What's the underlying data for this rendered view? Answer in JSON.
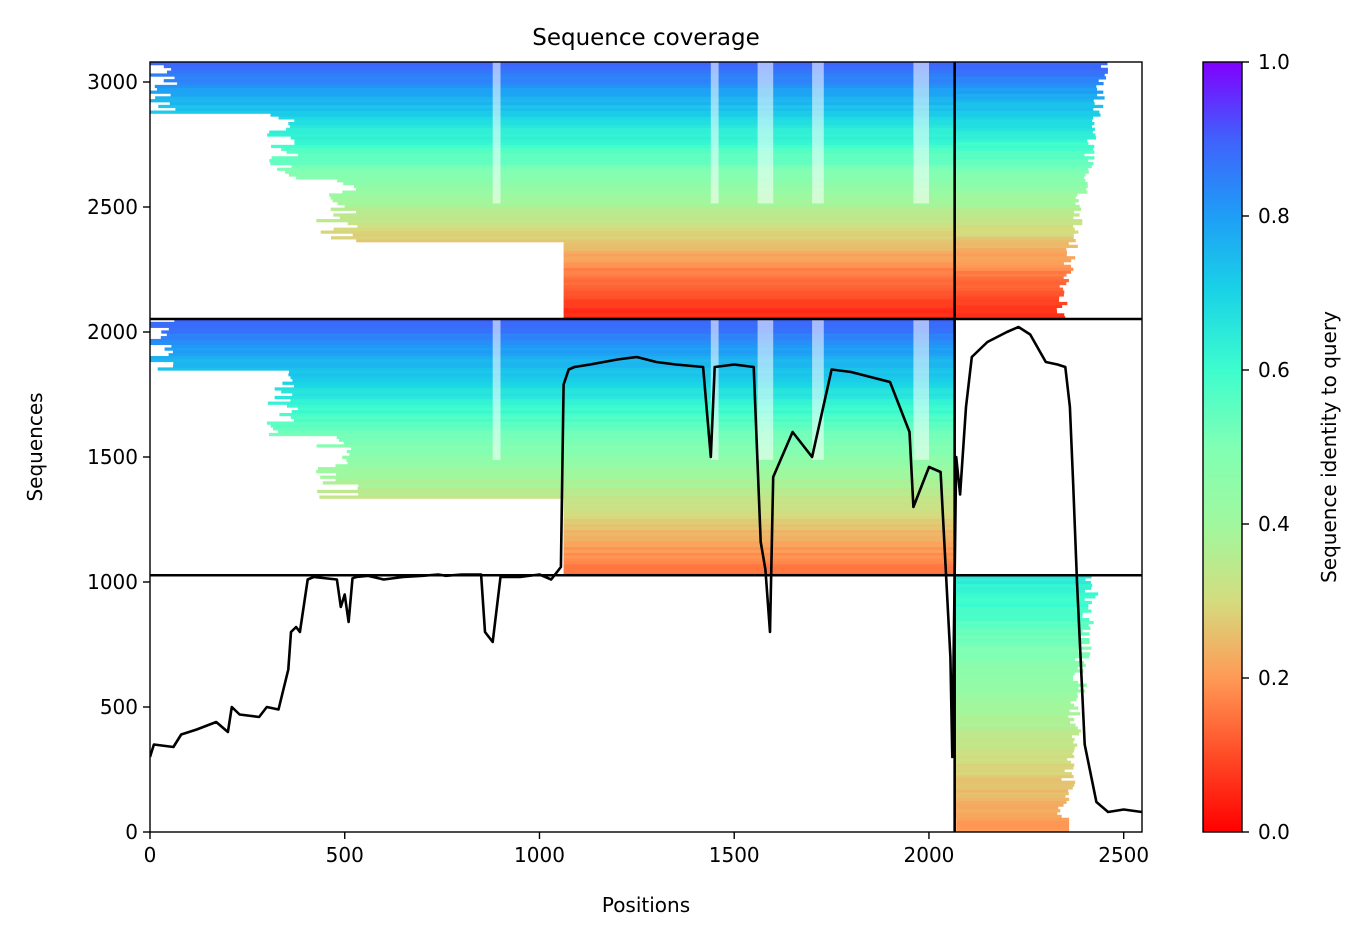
{
  "chart_data": {
    "type": "heatmap",
    "title": "Sequence coverage",
    "xlabel": "Positions",
    "ylabel": "Sequences",
    "xlim": [
      0,
      2547
    ],
    "ylim": [
      0,
      3080
    ],
    "x_ticks": [
      0,
      500,
      1000,
      1500,
      2000,
      2500
    ],
    "y_ticks": [
      0,
      500,
      1000,
      1500,
      2000,
      2500,
      3000
    ],
    "colormap": "rainbow_r",
    "colorbar": {
      "label": "Sequence identity to query",
      "range": [
        0,
        1
      ],
      "ticks": [
        "0.0",
        "0.2",
        "0.4",
        "0.6",
        "0.8",
        "1.0"
      ]
    },
    "chain_boundaries": {
      "vertical_x": [
        2066
      ],
      "horizontal_y": [
        1027,
        2052
      ]
    },
    "msa_blocks": [
      {
        "name": "block-top",
        "x": [
          0,
          2066
        ],
        "y": [
          2052,
          3080
        ],
        "identity_top": 0.9,
        "identity_bottom": 0.05,
        "profile": [
          [
            0,
            0.1
          ],
          [
            0.18,
            0.15
          ],
          [
            0.39,
            0.45
          ],
          [
            0.5,
            0.55
          ],
          [
            1,
            0.88
          ]
        ]
      },
      {
        "name": "block-top-right",
        "x": [
          2066,
          2547
        ],
        "y": [
          2052,
          3080
        ],
        "identity_top": 0.9,
        "identity_bottom": 0.05
      },
      {
        "name": "block-middle",
        "x": [
          0,
          2066
        ],
        "y": [
          1027,
          2052
        ],
        "identity_top": 0.9,
        "identity_bottom": 0.15
      },
      {
        "name": "block-bottom-right",
        "x": [
          2066,
          2547
        ],
        "y": [
          0,
          1027
        ],
        "identity_top": 0.65,
        "identity_bottom": 0.2
      }
    ],
    "series": [
      {
        "color": "#000000",
        "x": [
          0,
          10,
          60,
          80,
          120,
          170,
          200,
          210,
          230,
          280,
          300,
          330,
          355,
          362,
          375,
          385,
          405,
          420,
          480,
          490,
          500,
          510,
          520,
          530,
          560,
          600,
          650,
          700,
          740,
          760,
          800,
          850,
          860,
          880,
          900,
          950,
          1000,
          1030,
          1055,
          1062,
          1075,
          1090,
          1130,
          1200,
          1250,
          1300,
          1350,
          1420,
          1440,
          1450,
          1500,
          1550,
          1568,
          1580,
          1592,
          1600,
          1650,
          1700,
          1750,
          1800,
          1850,
          1900,
          1950,
          1960,
          1980,
          2000,
          2030,
          2055,
          2060,
          2070,
          2080,
          2095,
          2110,
          2150,
          2200,
          2230,
          2260,
          2300,
          2330,
          2350,
          2362,
          2370,
          2380,
          2400,
          2430,
          2460,
          2500,
          2547
        ],
        "values": [
          300,
          350,
          340,
          390,
          410,
          440,
          400,
          500,
          470,
          460,
          500,
          490,
          650,
          800,
          820,
          800,
          1010,
          1020,
          1010,
          900,
          950,
          840,
          1015,
          1020,
          1025,
          1010,
          1020,
          1025,
          1030,
          1025,
          1030,
          1030,
          800,
          760,
          1020,
          1020,
          1030,
          1010,
          1060,
          1790,
          1850,
          1860,
          1870,
          1890,
          1900,
          1880,
          1870,
          1860,
          1500,
          1860,
          1870,
          1860,
          1160,
          1050,
          800,
          1420,
          1600,
          1500,
          1850,
          1840,
          1820,
          1800,
          1600,
          1300,
          1380,
          1460,
          1440,
          700,
          300,
          1500,
          1350,
          1700,
          1900,
          1960,
          2000,
          2020,
          1990,
          1880,
          1870,
          1860,
          1700,
          1400,
          1000,
          350,
          120,
          80,
          90,
          80
        ]
      }
    ]
  }
}
